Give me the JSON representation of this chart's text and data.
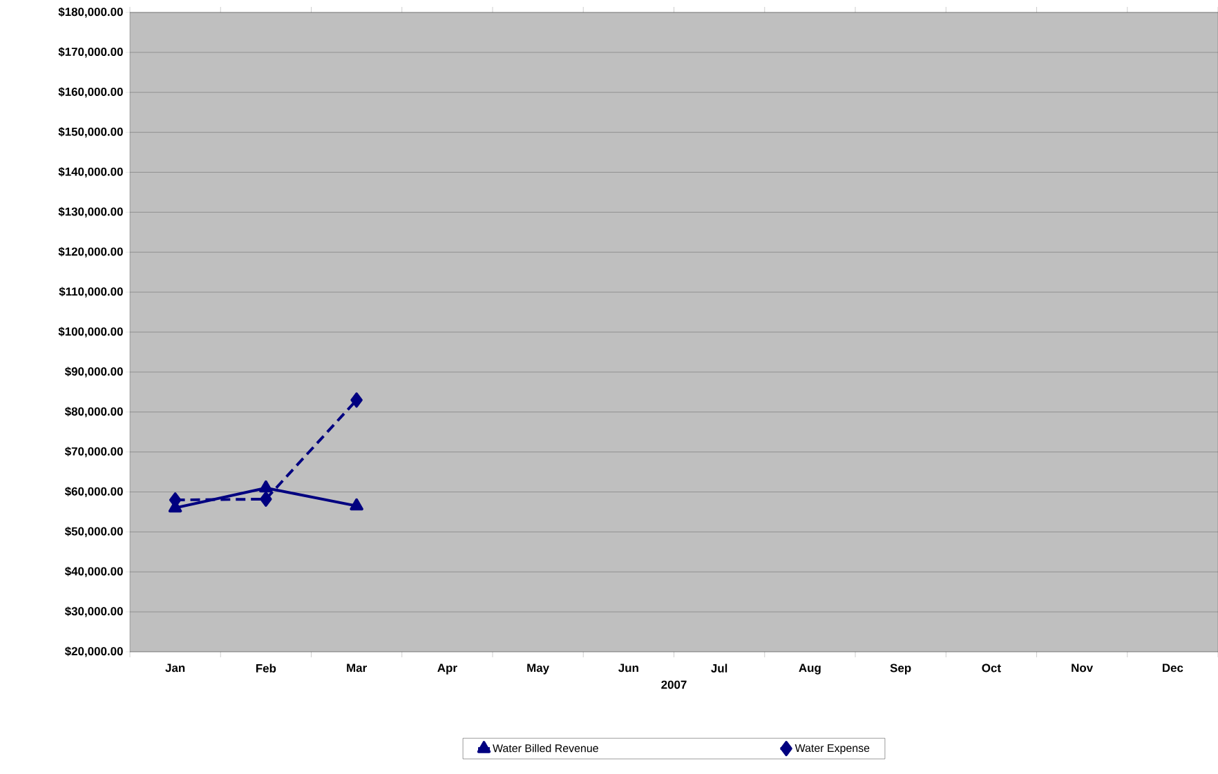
{
  "chart_data": {
    "type": "line",
    "xlabel": "2007",
    "categories": [
      "Jan",
      "Feb",
      "Mar",
      "Apr",
      "May",
      "Jun",
      "Jul",
      "Aug",
      "Sep",
      "Oct",
      "Nov",
      "Dec"
    ],
    "series": [
      {
        "name": "Water Billed Revenue",
        "color": "#000080",
        "marker": "triangle",
        "line_style": "solid",
        "values": [
          56000,
          61000,
          56500,
          null,
          null,
          null,
          null,
          null,
          null,
          null,
          null,
          null
        ]
      },
      {
        "name": "Water Expense",
        "color": "#000080",
        "marker": "diamond",
        "line_style": "dashed",
        "values": [
          58000,
          58200,
          83000,
          null,
          null,
          null,
          null,
          null,
          null,
          null,
          null,
          null
        ]
      }
    ],
    "ylim": [
      20000,
      180000
    ],
    "yticks": [
      {
        "value": 20000,
        "label": "$20,000.00"
      },
      {
        "value": 30000,
        "label": "$30,000.00"
      },
      {
        "value": 40000,
        "label": "$40,000.00"
      },
      {
        "value": 50000,
        "label": "$50,000.00"
      },
      {
        "value": 60000,
        "label": "$60,000.00"
      },
      {
        "value": 70000,
        "label": "$70,000.00"
      },
      {
        "value": 80000,
        "label": "$80,000.00"
      },
      {
        "value": 90000,
        "label": "$90,000.00"
      },
      {
        "value": 100000,
        "label": "$100,000.00"
      },
      {
        "value": 110000,
        "label": "$110,000.00"
      },
      {
        "value": 120000,
        "label": "$120,000.00"
      },
      {
        "value": 130000,
        "label": "$130,000.00"
      },
      {
        "value": 140000,
        "label": "$140,000.00"
      },
      {
        "value": 150000,
        "label": "$150,000.00"
      },
      {
        "value": 160000,
        "label": "$160,000.00"
      },
      {
        "value": 170000,
        "label": "$170,000.00"
      },
      {
        "value": 180000,
        "label": "$180,000.00"
      }
    ],
    "grid": "y",
    "legend": "bottom"
  }
}
